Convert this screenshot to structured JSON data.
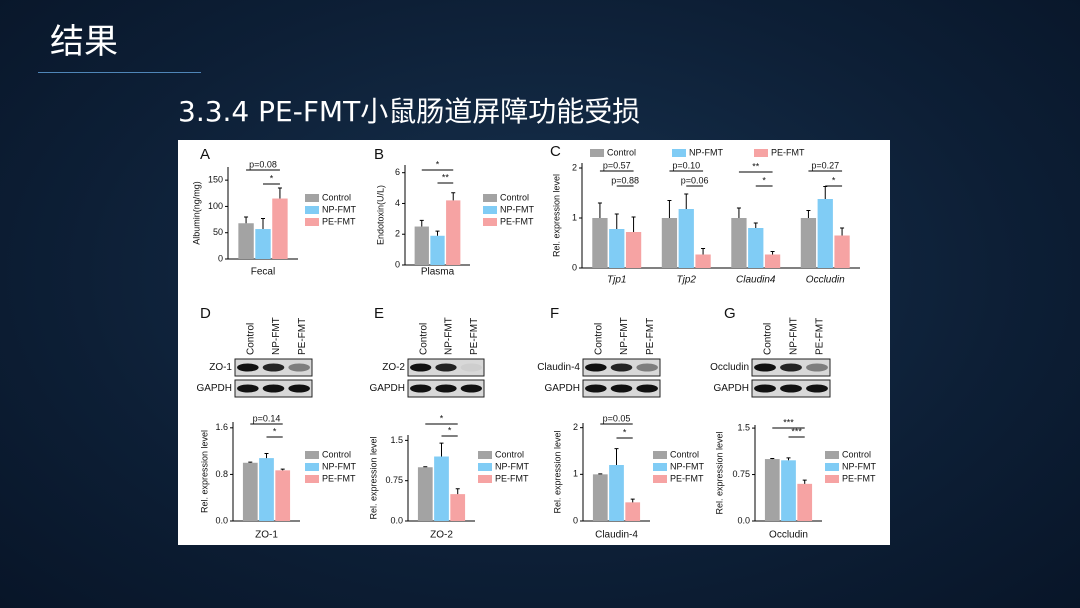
{
  "slide": {
    "title": "结果",
    "subtitle": "3.3.4 PE-FMT小鼠肠道屏障功能受损"
  },
  "chart_data": [
    {
      "type": "bar",
      "panel": "A",
      "ylabel": "Albumin(ng/mg)",
      "categories": [
        "Fecal"
      ],
      "series": [
        {
          "name": "Control",
          "color": "#a3a3a3",
          "values": [
            68
          ],
          "errors": [
            12
          ]
        },
        {
          "name": "NP-FMT",
          "color": "#80ccf5",
          "values": [
            57
          ],
          "errors": [
            20
          ]
        },
        {
          "name": "PE-FMT",
          "color": "#f6a3a3",
          "values": [
            115
          ],
          "errors": [
            20
          ]
        }
      ],
      "ylim": [
        0,
        175
      ],
      "yticks": [
        0,
        50,
        100,
        150
      ],
      "annotations": [
        "p=0.08",
        "*"
      ]
    },
    {
      "type": "bar",
      "panel": "B",
      "ylabel": "Endotoxin(U/L)",
      "categories": [
        "Plasma"
      ],
      "series": [
        {
          "name": "Control",
          "color": "#a3a3a3",
          "values": [
            2.5
          ],
          "errors": [
            0.4
          ]
        },
        {
          "name": "NP-FMT",
          "color": "#80ccf5",
          "values": [
            1.9
          ],
          "errors": [
            0.3
          ]
        },
        {
          "name": "PE-FMT",
          "color": "#f6a3a3",
          "values": [
            4.2
          ],
          "errors": [
            0.5
          ]
        }
      ],
      "ylim": [
        0,
        6.5
      ],
      "yticks": [
        0,
        2,
        4,
        6
      ],
      "annotations": [
        "*",
        "**"
      ]
    },
    {
      "type": "bar",
      "panel": "C",
      "ylabel": "Rel. expression level",
      "categories": [
        "Tjp1",
        "Tjp2",
        "Claudin4",
        "Occludin"
      ],
      "series": [
        {
          "name": "Control",
          "color": "#a3a3a3",
          "values": [
            1.0,
            1.0,
            1.0,
            1.0
          ],
          "errors": [
            0.3,
            0.35,
            0.2,
            0.15
          ]
        },
        {
          "name": "NP-FMT",
          "color": "#80ccf5",
          "values": [
            0.78,
            1.18,
            0.8,
            1.38
          ],
          "errors": [
            0.3,
            0.3,
            0.1,
            0.25
          ]
        },
        {
          "name": "PE-FMT",
          "color": "#f6a3a3",
          "values": [
            0.72,
            0.27,
            0.27,
            0.65
          ],
          "errors": [
            0.3,
            0.12,
            0.06,
            0.15
          ]
        }
      ],
      "ylim": [
        0,
        2.1
      ],
      "yticks": [
        0,
        1,
        2
      ],
      "annotations": [
        "p=0.57",
        "p=0.88",
        "p=0.10",
        "p=0.06",
        "**",
        "*",
        "p=0.27",
        "*"
      ]
    },
    {
      "type": "bar",
      "panel": "D",
      "ylabel": "Rel. expression level",
      "categories": [
        "ZO-1"
      ],
      "blot_lanes": [
        "Control",
        "NP-FMT",
        "PE-FMT"
      ],
      "blot_rows": [
        "ZO-1",
        "GAPDH"
      ],
      "series": [
        {
          "name": "Control",
          "color": "#a3a3a3",
          "values": [
            1.0
          ],
          "errors": [
            0.01
          ]
        },
        {
          "name": "NP-FMT",
          "color": "#80ccf5",
          "values": [
            1.08
          ],
          "errors": [
            0.08
          ]
        },
        {
          "name": "PE-FMT",
          "color": "#f6a3a3",
          "values": [
            0.87
          ],
          "errors": [
            0.02
          ]
        }
      ],
      "ylim": [
        0,
        1.7
      ],
      "yticks": [
        {
          "value": 0,
          "label": "0.0"
        },
        0.8,
        1.6
      ],
      "annotations": [
        "p=0.14",
        "*"
      ]
    },
    {
      "type": "bar",
      "panel": "E",
      "ylabel": "Rel. expression level",
      "categories": [
        "ZO-2"
      ],
      "blot_lanes": [
        "Control",
        "NP-FMT",
        "PE-FMT"
      ],
      "blot_rows": [
        "ZO-2",
        "GAPDH"
      ],
      "series": [
        {
          "name": "Control",
          "color": "#a3a3a3",
          "values": [
            1.0
          ],
          "errors": [
            0.01
          ]
        },
        {
          "name": "NP-FMT",
          "color": "#80ccf5",
          "values": [
            1.2
          ],
          "errors": [
            0.25
          ]
        },
        {
          "name": "PE-FMT",
          "color": "#f6a3a3",
          "values": [
            0.5
          ],
          "errors": [
            0.1
          ]
        }
      ],
      "ylim": [
        0,
        1.6
      ],
      "yticks": [
        {
          "value": 0,
          "label": "0.0"
        },
        0.75,
        1.5
      ],
      "annotations": [
        "*",
        "*"
      ]
    },
    {
      "type": "bar",
      "panel": "F",
      "ylabel": "Rel. expression level",
      "categories": [
        "Claudin-4"
      ],
      "blot_lanes": [
        "Control",
        "NP-FMT",
        "PE-FMT"
      ],
      "blot_rows": [
        "Claudin-4",
        "GAPDH"
      ],
      "series": [
        {
          "name": "Control",
          "color": "#a3a3a3",
          "values": [
            1.0
          ],
          "errors": [
            0.01
          ]
        },
        {
          "name": "NP-FMT",
          "color": "#80ccf5",
          "values": [
            1.2
          ],
          "errors": [
            0.35
          ]
        },
        {
          "name": "PE-FMT",
          "color": "#f6a3a3",
          "values": [
            0.4
          ],
          "errors": [
            0.07
          ]
        }
      ],
      "ylim": [
        0,
        2.1
      ],
      "yticks": [
        0,
        1,
        2
      ],
      "annotations": [
        "p=0.05",
        "*"
      ]
    },
    {
      "type": "bar",
      "panel": "G",
      "ylabel": "Rel. expression level",
      "categories": [
        "Occludin"
      ],
      "blot_lanes": [
        "Control",
        "NP-FMT",
        "PE-FMT"
      ],
      "blot_rows": [
        "Occludin",
        "GAPDH"
      ],
      "series": [
        {
          "name": "Control",
          "color": "#a3a3a3",
          "values": [
            1.0
          ],
          "errors": [
            0.01
          ]
        },
        {
          "name": "NP-FMT",
          "color": "#80ccf5",
          "values": [
            0.98
          ],
          "errors": [
            0.04
          ]
        },
        {
          "name": "PE-FMT",
          "color": "#f6a3a3",
          "values": [
            0.6
          ],
          "errors": [
            0.06
          ]
        }
      ],
      "ylim": [
        0,
        1.55
      ],
      "yticks": [
        {
          "value": 0,
          "label": "0.0"
        },
        0.75,
        1.5
      ],
      "annotations": [
        "***",
        "***"
      ]
    }
  ]
}
